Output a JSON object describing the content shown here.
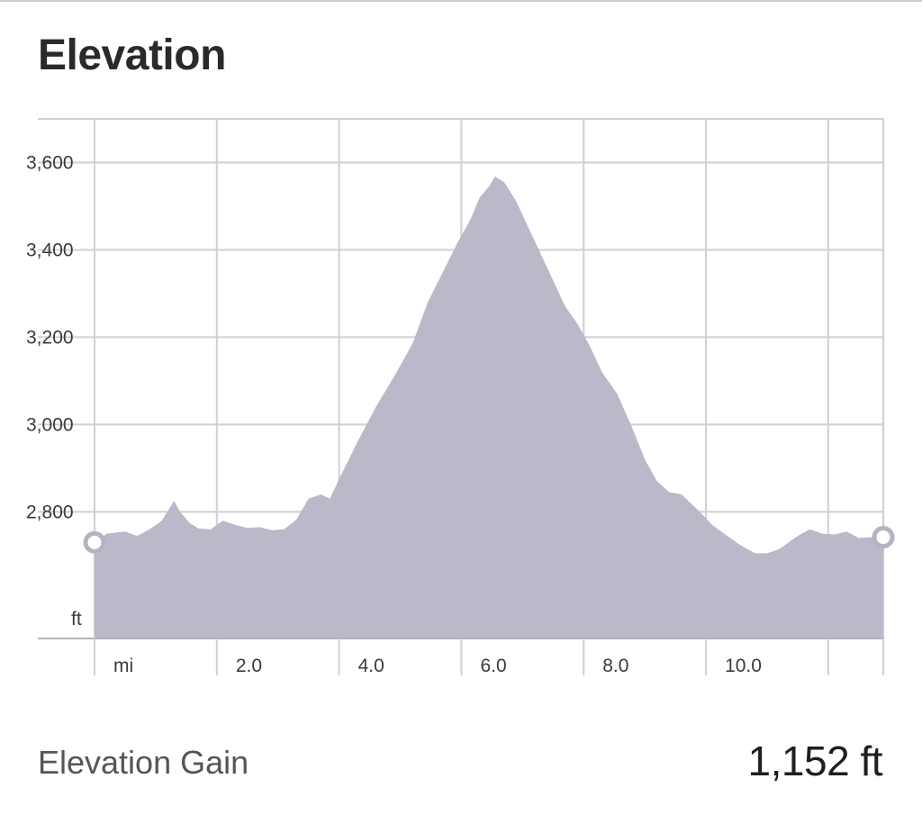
{
  "header": {
    "title": "Elevation"
  },
  "colors": {
    "fill": "#b9b9c9",
    "grid": "#cfcfd4",
    "axis": "#b3b3b8",
    "marker": "#b3b3c3"
  },
  "chart_data": {
    "type": "area",
    "title": "",
    "y_unit": "ft",
    "x_unit": "mi",
    "xlim": [
      0,
      12.9
    ],
    "ylim": [
      2510,
      3700
    ],
    "y_ticks": [
      {
        "value": 2800,
        "label": "2,800"
      },
      {
        "value": 3000,
        "label": "3,000"
      },
      {
        "value": 3200,
        "label": "3,200"
      },
      {
        "value": 3400,
        "label": "3,400"
      },
      {
        "value": 3600,
        "label": "3,600"
      }
    ],
    "x_ticks": [
      {
        "value": 2,
        "label": "2.0"
      },
      {
        "value": 4,
        "label": "4.0"
      },
      {
        "value": 6,
        "label": "6.0"
      },
      {
        "value": 8,
        "label": "8.0"
      },
      {
        "value": 10,
        "label": "10.0"
      }
    ],
    "x_gridlines": [
      0,
      2,
      4,
      6,
      8,
      10,
      12,
      12.9
    ],
    "grid": true,
    "series": [
      {
        "x": [
          0,
          0.2,
          0.5,
          0.7,
          0.9,
          1.1,
          1.3,
          1.4,
          1.55,
          1.7,
          1.9,
          2.1,
          2.3,
          2.5,
          2.7,
          2.9,
          3.1,
          3.3,
          3.5,
          3.7,
          3.85,
          4.0,
          4.3,
          4.6,
          4.9,
          5.2,
          5.45,
          5.7,
          5.95,
          6.15,
          6.3,
          6.45,
          6.55,
          6.7,
          6.9,
          7.1,
          7.3,
          7.5,
          7.7,
          7.9,
          8.1,
          8.3,
          8.55,
          8.8,
          9.0,
          9.2,
          9.4,
          9.6,
          9.9,
          10.1,
          10.35,
          10.55,
          10.8,
          11.0,
          11.2,
          11.5,
          11.7,
          11.9,
          12.1,
          12.3,
          12.5,
          12.7,
          12.9
        ],
        "y": [
          2730,
          2750,
          2755,
          2745,
          2760,
          2780,
          2825,
          2800,
          2775,
          2762,
          2760,
          2780,
          2770,
          2763,
          2765,
          2758,
          2760,
          2782,
          2830,
          2840,
          2830,
          2875,
          2960,
          3040,
          3110,
          3185,
          3280,
          3350,
          3420,
          3470,
          3520,
          3545,
          3568,
          3555,
          3510,
          3450,
          3390,
          3330,
          3270,
          3230,
          3180,
          3120,
          3070,
          2990,
          2920,
          2870,
          2845,
          2840,
          2800,
          2770,
          2745,
          2725,
          2705,
          2705,
          2715,
          2745,
          2760,
          2750,
          2748,
          2755,
          2740,
          2742,
          2742
        ]
      }
    ]
  },
  "summary": {
    "label": "Elevation Gain",
    "value": "1,152 ft"
  }
}
